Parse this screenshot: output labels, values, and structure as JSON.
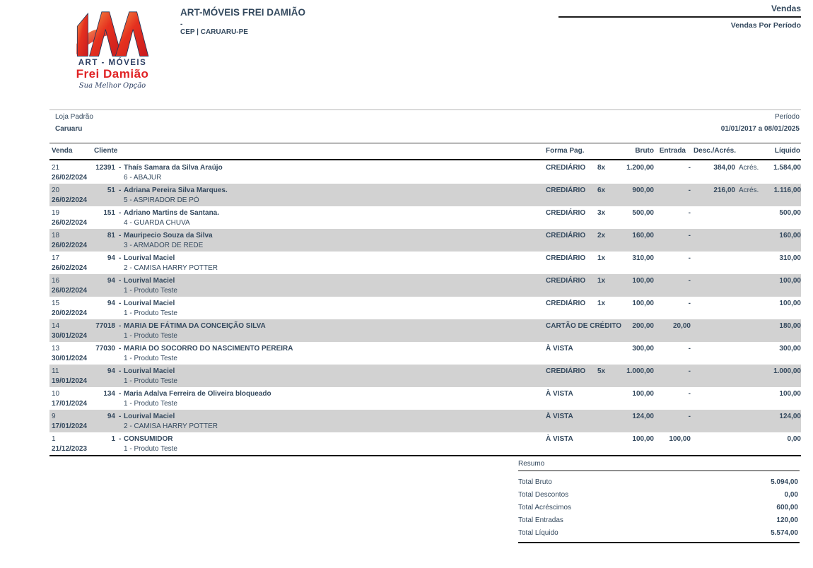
{
  "header": {
    "company_name": "ART-MÓVEIS FREI DAMIÃO",
    "address_line": "-",
    "location_line": "CEP | CARUARU-PE",
    "module_title": "Vendas",
    "report_title": "Vendas Por Período"
  },
  "logo": {
    "line1": "ART - MÓVEIS",
    "line2": "Frei Damião",
    "tagline": "Sua Melhor Opção",
    "colors": {
      "red": "#e02325",
      "orange": "#f59a4a",
      "navy": "#2d3f63"
    }
  },
  "filters": {
    "store_label": "Loja Padrão",
    "store_value": "Caruaru",
    "period_label": "Período",
    "period_value": "01/01/2017 a 08/01/2025"
  },
  "table": {
    "dash": "-",
    "headers": {
      "venda": "Venda",
      "cliente": "Cliente",
      "forma_pag": "Forma Pag.",
      "bruto": "Bruto",
      "entrada": "Entrada",
      "desc_acres": "Desc./Acrés.",
      "liquido": "Líquido"
    },
    "rows": [
      {
        "num": "21",
        "date": "26/02/2024",
        "code": "12391",
        "name": "Thaís Samara da Silva Araújo",
        "item": "6 - ABAJUR",
        "payment": "CREDIÁRIO",
        "installments": "8x",
        "bruto": "1.200,00",
        "entrada": "-",
        "desc": "384,00",
        "desc_type": "Acrés.",
        "liquido": "1.584,00"
      },
      {
        "num": "20",
        "date": "26/02/2024",
        "code": "51",
        "name": "Adriana Pereira Silva Marques.",
        "item": "5 - ASPIRADOR DE PÓ",
        "payment": "CREDIÁRIO",
        "installments": "6x",
        "bruto": "900,00",
        "entrada": "-",
        "desc": "216,00",
        "desc_type": "Acrés.",
        "liquido": "1.116,00"
      },
      {
        "num": "19",
        "date": "26/02/2024",
        "code": "151",
        "name": "Adriano Martins de Santana.",
        "item": "4 - GUARDA CHUVA",
        "payment": "CREDIÁRIO",
        "installments": "3x",
        "bruto": "500,00",
        "entrada": "-",
        "desc": "",
        "desc_type": "",
        "liquido": "500,00"
      },
      {
        "num": "18",
        "date": "26/02/2024",
        "code": "81",
        "name": "Mauripecio Souza da Silva",
        "item": "3 - ARMADOR DE REDE",
        "payment": "CREDIÁRIO",
        "installments": "2x",
        "bruto": "160,00",
        "entrada": "-",
        "desc": "",
        "desc_type": "",
        "liquido": "160,00"
      },
      {
        "num": "17",
        "date": "26/02/2024",
        "code": "94",
        "name": "Lourival Maciel",
        "item": "2 - CAMISA HARRY POTTER",
        "payment": "CREDIÁRIO",
        "installments": "1x",
        "bruto": "310,00",
        "entrada": "-",
        "desc": "",
        "desc_type": "",
        "liquido": "310,00"
      },
      {
        "num": "16",
        "date": "26/02/2024",
        "code": "94",
        "name": "Lourival Maciel",
        "item": "1 - Produto Teste",
        "payment": "CREDIÁRIO",
        "installments": "1x",
        "bruto": "100,00",
        "entrada": "-",
        "desc": "",
        "desc_type": "",
        "liquido": "100,00"
      },
      {
        "num": "15",
        "date": "20/02/2024",
        "code": "94",
        "name": "Lourival Maciel",
        "item": "1 - Produto Teste",
        "payment": "CREDIÁRIO",
        "installments": "1x",
        "bruto": "100,00",
        "entrada": "-",
        "desc": "",
        "desc_type": "",
        "liquido": "100,00"
      },
      {
        "num": "14",
        "date": "30/01/2024",
        "code": "77018",
        "name": "MARIA DE FÁTIMA DA CONCEIÇÃO SILVA",
        "item": "1 - Produto Teste",
        "payment": "CARTÃO DE CRÉDITO",
        "installments": "",
        "bruto": "200,00",
        "entrada": "20,00",
        "desc": "",
        "desc_type": "",
        "liquido": "180,00"
      },
      {
        "num": "13",
        "date": "30/01/2024",
        "code": "77030",
        "name": "MARIA DO SOCORRO DO NASCIMENTO PEREIRA",
        "item": "1 - Produto Teste",
        "payment": "À VISTA",
        "installments": "",
        "bruto": "300,00",
        "entrada": "-",
        "desc": "",
        "desc_type": "",
        "liquido": "300,00"
      },
      {
        "num": "11",
        "date": "19/01/2024",
        "code": "94",
        "name": "Lourival Maciel",
        "item": "1 - Produto Teste",
        "payment": "CREDIÁRIO",
        "installments": "5x",
        "bruto": "1.000,00",
        "entrada": "-",
        "desc": "",
        "desc_type": "",
        "liquido": "1.000,00"
      },
      {
        "num": "10",
        "date": "17/01/2024",
        "code": "134",
        "name": "Maria Adalva Ferreira de Oliveira bloqueado",
        "item": "1 - Produto Teste",
        "payment": "À VISTA",
        "installments": "",
        "bruto": "100,00",
        "entrada": "-",
        "desc": "",
        "desc_type": "",
        "liquido": "100,00"
      },
      {
        "num": "9",
        "date": "17/01/2024",
        "code": "94",
        "name": "Lourival Maciel",
        "item": "2 - CAMISA HARRY POTTER",
        "payment": "À VISTA",
        "installments": "",
        "bruto": "124,00",
        "entrada": "-",
        "desc": "",
        "desc_type": "",
        "liquido": "124,00"
      },
      {
        "num": "1",
        "date": "21/12/2023",
        "code": "1",
        "name": "CONSUMIDOR",
        "item": "1 - Produto Teste",
        "payment": "À VISTA",
        "installments": "",
        "bruto": "100,00",
        "entrada": "100,00",
        "desc": "",
        "desc_type": "",
        "liquido": "0,00"
      }
    ]
  },
  "summary": {
    "title": "Resumo",
    "rows": [
      {
        "label": "Total Bruto",
        "value": "5.094,00"
      },
      {
        "label": "Total Descontos",
        "value": "0,00"
      },
      {
        "label": "Total Acréscimos",
        "value": "600,00"
      },
      {
        "label": "Total Entradas",
        "value": "120,00"
      },
      {
        "label": "Total Líquido",
        "value": "5.574,00"
      }
    ]
  },
  "style": {
    "zebra_row_gray": "#d2d2d2",
    "text_navy": "#34495e",
    "rule_dark": "#161616",
    "rule_light": "#b5b5b5"
  }
}
